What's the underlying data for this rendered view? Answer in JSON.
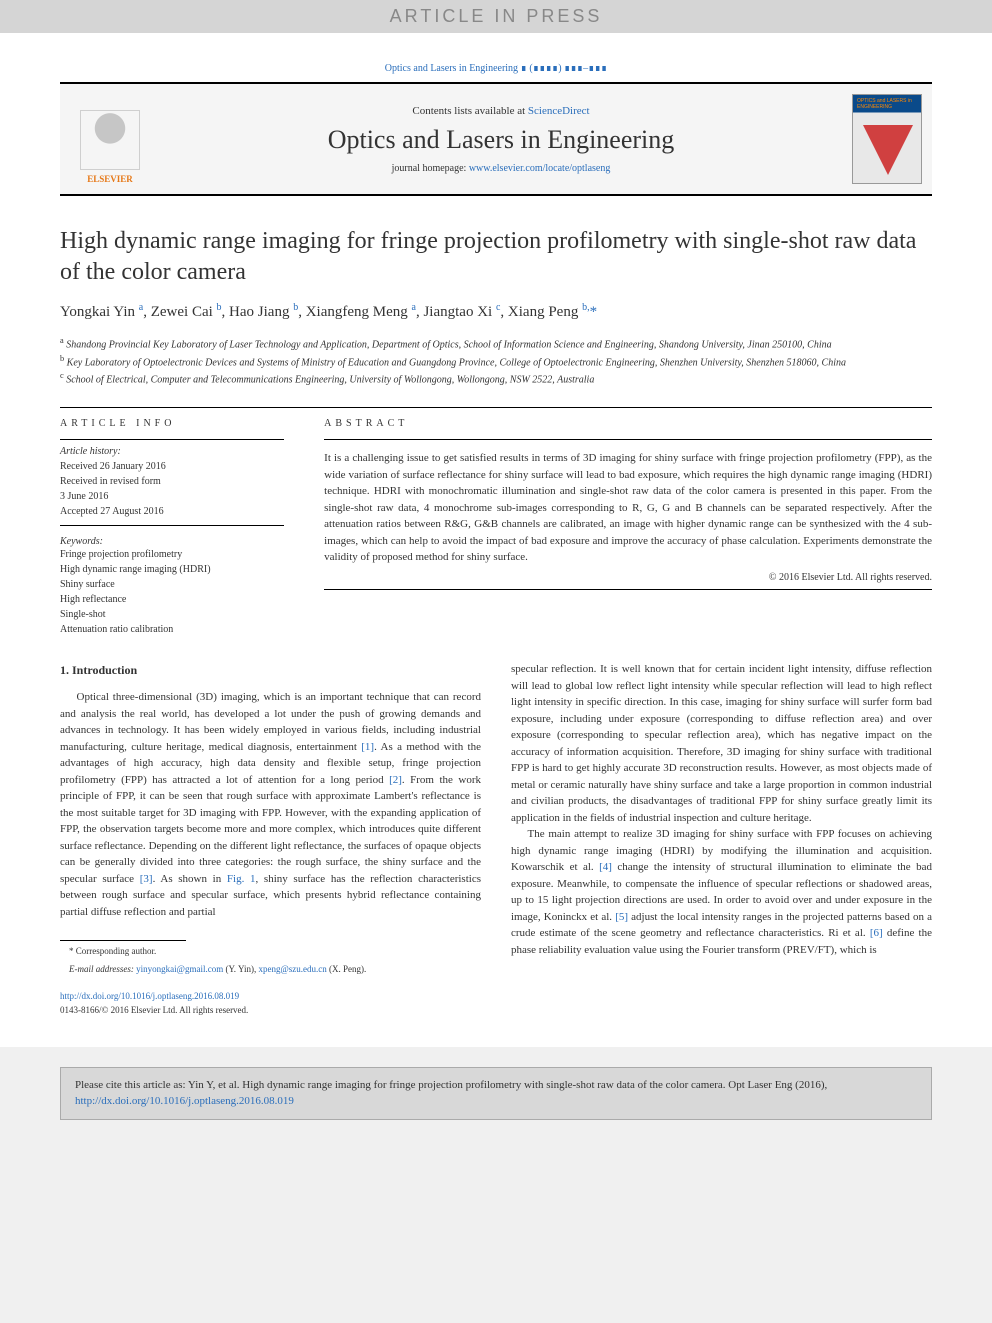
{
  "press_banner": "ARTICLE IN PRESS",
  "journal_ref": "Optics and Lasers in Engineering ∎ (∎∎∎∎) ∎∎∎–∎∎∎",
  "header": {
    "contents_pre": "Contents lists available at ",
    "contents_link": "ScienceDirect",
    "journal_name": "Optics and Lasers in Engineering",
    "homepage_pre": "journal homepage: ",
    "homepage_link": "www.elsevier.com/locate/optlaseng",
    "elsevier_label": "ELSEVIER",
    "cover_label": "OPTICS and LASERS in ENGINEERING"
  },
  "article": {
    "title": "High dynamic range imaging for fringe projection profilometry with single-shot raw data of the color camera",
    "authors_html": "Yongkai Yin <sup>a</sup>, Zewei Cai <sup>b</sup>, Hao Jiang <sup>b</sup>, Xiangfeng Meng <sup>a</sup>, Jiangtao Xi <sup>c</sup>, Xiang Peng <sup>b,</sup><span class=\"star\">*</span>",
    "affiliations": [
      "a Shandong Provincial Key Laboratory of Laser Technology and Application, Department of Optics, School of Information Science and Engineering, Shandong University, Jinan 250100, China",
      "b Key Laboratory of Optoelectronic Devices and Systems of Ministry of Education and Guangdong Province, College of Optoelectronic Engineering, Shenzhen University, Shenzhen 518060, China",
      "c School of Electrical, Computer and Telecommunications Engineering, University of Wollongong, Wollongong, NSW 2522, Australia"
    ]
  },
  "info": {
    "heading": "ARTICLE INFO",
    "history_label": "Article history:",
    "history": [
      "Received 26 January 2016",
      "Received in revised form",
      "3 June 2016",
      "Accepted 27 August 2016"
    ],
    "kw_label": "Keywords:",
    "keywords": [
      "Fringe projection profilometry",
      "High dynamic range imaging (HDRI)",
      "Shiny surface",
      "High reflectance",
      "Single-shot",
      "Attenuation ratio calibration"
    ]
  },
  "abstract": {
    "heading": "ABSTRACT",
    "text": "It is a challenging issue to get satisfied results in terms of 3D imaging for shiny surface with fringe projection profilometry (FPP), as the wide variation of surface reflectance for shiny surface will lead to bad exposure, which requires the high dynamic range imaging (HDRI) technique. HDRI with monochromatic illumination and single-shot raw data of the color camera is presented in this paper. From the single-shot raw data, 4 monochrome sub-images corresponding to R, G, G and B channels can be separated respectively. After the attenuation ratios between R&G, G&B channels are calibrated, an image with higher dynamic range can be synthesized with the 4 sub-images, which can help to avoid the impact of bad exposure and improve the accuracy of phase calculation. Experiments demonstrate the validity of proposed method for shiny surface.",
    "copyright": "© 2016 Elsevier Ltd. All rights reserved."
  },
  "body": {
    "section1_heading": "1. Introduction",
    "col1_p1": "Optical three-dimensional (3D) imaging, which is an important technique that can record and analysis the real world, has developed a lot under the push of growing demands and advances in technology. It has been widely employed in various fields, including industrial manufacturing, culture heritage, medical diagnosis, entertainment ",
    "ref1": "[1]",
    "col1_p1b": ". As a method with the advantages of high accuracy, high data density and flexible setup, fringe projection profilometry (FPP) has attracted a lot of attention for a long period ",
    "ref2": "[2]",
    "col1_p1c": ". From the work principle of FPP, it can be seen that rough surface with approximate Lambert's reflectance is the most suitable target for 3D imaging with FPP. However, with the expanding application of FPP, the observation targets become more and more complex, which introduces quite different surface reflectance. Depending on the different light reflectance, the surfaces of opaque objects can be generally divided into three categories: the rough surface, the shiny surface and the specular surface ",
    "ref3": "[3]",
    "col1_p1d": ". As shown in ",
    "fig1": "Fig. 1",
    "col1_p1e": ", shiny surface has the reflection characteristics between rough surface and specular surface, which presents hybrid reflectance containing partial diffuse reflection and partial",
    "col2_p1": "specular reflection. It is well known that for certain incident light intensity, diffuse reflection will lead to global low reflect light intensity while specular reflection will lead to high reflect light intensity in specific direction. In this case, imaging for shiny surface will surfer form bad exposure, including under exposure (corresponding to diffuse reflection area) and over exposure (corresponding to specular reflection area), which has negative impact on the accuracy of information acquisition. Therefore, 3D imaging for shiny surface with traditional FPP is hard to get highly accurate 3D reconstruction results. However, as most objects made of metal or ceramic naturally have shiny surface and take a large proportion in common industrial and civilian products, the disadvantages of traditional FPP for shiny surface greatly limit its application in the fields of industrial inspection and culture heritage.",
    "col2_p2a": "The main attempt to realize 3D imaging for shiny surface with FPP focuses on achieving high dynamic range imaging (HDRI) by modifying the illumination and acquisition. Kowarschik et al. ",
    "ref4": "[4]",
    "col2_p2b": " change the intensity of structural illumination to eliminate the bad exposure. Meanwhile, to compensate the influence of specular reflections or shadowed areas, up to 15 light projection directions are used. In order to avoid over and under exposure in the image, Koninckx et al. ",
    "ref5": "[5]",
    "col2_p2c": " adjust the local intensity ranges in the projected patterns based on a crude estimate of the scene geometry and reflectance characteristics. Ri et al. ",
    "ref6": "[6]",
    "col2_p2d": " define the phase reliability evaluation value using the Fourier transform (PREV/FT), which is"
  },
  "footnote": {
    "corr": "* Corresponding author.",
    "emails_label": "E-mail addresses: ",
    "email1": "yinyongkai@gmail.com",
    "email1_who": " (Y. Yin), ",
    "email2": "xpeng@szu.edu.cn",
    "email2_who": " (X. Peng)."
  },
  "doi": {
    "url": "http://dx.doi.org/10.1016/j.optlaseng.2016.08.019",
    "issn": "0143-8166/© 2016 Elsevier Ltd. All rights reserved."
  },
  "citation": {
    "pre": "Please cite this article as: Yin Y, et al. High dynamic range imaging for fringe projection profilometry with single-shot raw data of the color camera. Opt Laser Eng (2016), ",
    "link": "http://dx.doi.org/10.1016/j.optlaseng.2016.08.019"
  }
}
